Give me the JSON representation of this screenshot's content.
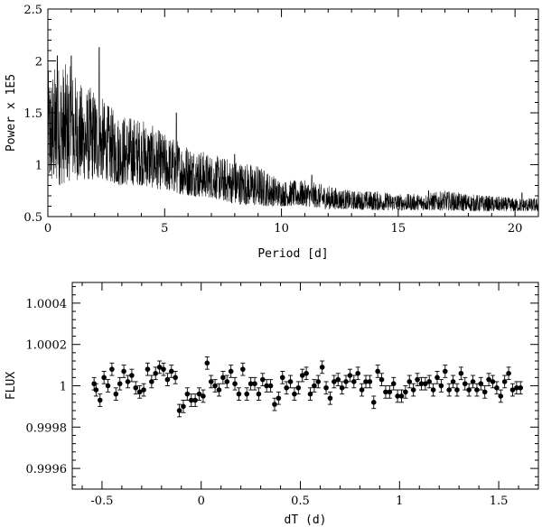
{
  "chart_data": [
    {
      "type": "line",
      "xlabel": "Period [d]",
      "ylabel": "Power x 1E5",
      "xlim": [
        0,
        21
      ],
      "ylim": [
        0.5,
        2.5
      ],
      "xticks": [
        0,
        5,
        10,
        15,
        20
      ],
      "yticks": [
        0.5,
        1,
        1.5,
        2,
        2.5
      ],
      "xtick_labels": [
        "0",
        "5",
        "10",
        "15",
        "20"
      ],
      "ytick_labels": [
        "0.5",
        "1",
        "1.5",
        "2",
        "2.5"
      ],
      "envelope": {
        "x": [
          0,
          0.5,
          1,
          1.5,
          2,
          2.5,
          3,
          4,
          5,
          6,
          7,
          8,
          9,
          10,
          11,
          12,
          13,
          14,
          15,
          16,
          17,
          18,
          19,
          20,
          21
        ],
        "low": [
          0.8,
          0.8,
          0.85,
          0.85,
          0.85,
          0.85,
          0.8,
          0.8,
          0.75,
          0.7,
          0.68,
          0.62,
          0.6,
          0.6,
          0.6,
          0.57,
          0.57,
          0.56,
          0.56,
          0.56,
          0.56,
          0.55,
          0.55,
          0.55,
          0.55
        ],
        "high": [
          1.9,
          2.0,
          1.95,
          1.75,
          1.75,
          1.6,
          1.5,
          1.45,
          1.3,
          1.2,
          1.1,
          1.05,
          1.0,
          0.85,
          0.85,
          0.8,
          0.75,
          0.75,
          0.72,
          0.72,
          0.75,
          0.72,
          0.7,
          0.68,
          0.68
        ]
      },
      "peaks": [
        {
          "x": 0.4,
          "y": 2.05
        },
        {
          "x": 1.0,
          "y": 2.05
        },
        {
          "x": 2.2,
          "y": 2.13
        },
        {
          "x": 5.5,
          "y": 1.5
        },
        {
          "x": 8.0,
          "y": 1.1
        },
        {
          "x": 11.3,
          "y": 0.9
        },
        {
          "x": 16.3,
          "y": 0.75
        },
        {
          "x": 20.3,
          "y": 0.73
        }
      ]
    },
    {
      "type": "scatter",
      "xlabel": "dT (d)",
      "ylabel": "FLUX",
      "xlim": [
        -0.65,
        1.7
      ],
      "ylim": [
        0.9995,
        1.0005
      ],
      "xticks": [
        -0.5,
        0,
        0.5,
        1,
        1.5
      ],
      "yticks": [
        0.9996,
        0.9998,
        1,
        1.0002,
        1.0004
      ],
      "xtick_labels": [
        "-0.5",
        "0",
        "0.5",
        "1",
        "1.5"
      ],
      "ytick_labels": [
        "0.9996",
        "0.9998",
        "1",
        "1.0002",
        "1.0004"
      ],
      "error": 3e-05,
      "points": [
        [
          -0.54,
          1.00001
        ],
        [
          -0.53,
          0.99998
        ],
        [
          -0.51,
          0.99993
        ],
        [
          -0.49,
          1.00004
        ],
        [
          -0.47,
          1.0
        ],
        [
          -0.45,
          1.00008
        ],
        [
          -0.43,
          0.99996
        ],
        [
          -0.41,
          1.00001
        ],
        [
          -0.39,
          1.00007
        ],
        [
          -0.37,
          1.00002
        ],
        [
          -0.35,
          1.00005
        ],
        [
          -0.33,
          0.99999
        ],
        [
          -0.31,
          0.99997
        ],
        [
          -0.29,
          0.99998
        ],
        [
          -0.27,
          1.00008
        ],
        [
          -0.25,
          1.00002
        ],
        [
          -0.23,
          1.00006
        ],
        [
          -0.21,
          1.00009
        ],
        [
          -0.19,
          1.00008
        ],
        [
          -0.17,
          1.00003
        ],
        [
          -0.15,
          1.00007
        ],
        [
          -0.13,
          1.00004
        ],
        [
          -0.11,
          0.99988
        ],
        [
          -0.09,
          0.9999
        ],
        [
          -0.07,
          0.99996
        ],
        [
          -0.05,
          0.99993
        ],
        [
          -0.03,
          0.99993
        ],
        [
          -0.01,
          0.99996
        ],
        [
          0.01,
          0.99995
        ],
        [
          0.03,
          1.00011
        ],
        [
          0.05,
          1.00002
        ],
        [
          0.07,
          1.0
        ],
        [
          0.09,
          0.99998
        ],
        [
          0.11,
          1.00004
        ],
        [
          0.13,
          1.00002
        ],
        [
          0.15,
          1.00007
        ],
        [
          0.17,
          1.00001
        ],
        [
          0.19,
          0.99996
        ],
        [
          0.21,
          1.00008
        ],
        [
          0.23,
          0.99996
        ],
        [
          0.25,
          1.00001
        ],
        [
          0.27,
          1.00001
        ],
        [
          0.29,
          0.99996
        ],
        [
          0.31,
          1.00003
        ],
        [
          0.33,
          1.0
        ],
        [
          0.35,
          1.0
        ],
        [
          0.37,
          0.99991
        ],
        [
          0.39,
          0.99994
        ],
        [
          0.41,
          1.00004
        ],
        [
          0.43,
          0.99999
        ],
        [
          0.45,
          1.00002
        ],
        [
          0.47,
          0.99996
        ],
        [
          0.49,
          0.99999
        ],
        [
          0.51,
          1.00005
        ],
        [
          0.53,
          1.00006
        ],
        [
          0.55,
          0.99996
        ],
        [
          0.57,
          1.0
        ],
        [
          0.59,
          1.00002
        ],
        [
          0.61,
          1.00009
        ],
        [
          0.63,
          0.99999
        ],
        [
          0.65,
          0.99994
        ],
        [
          0.67,
          1.00002
        ],
        [
          0.69,
          1.00003
        ],
        [
          0.71,
          0.99999
        ],
        [
          0.73,
          1.00002
        ],
        [
          0.75,
          1.00005
        ],
        [
          0.77,
          1.00002
        ],
        [
          0.79,
          1.00006
        ],
        [
          0.81,
          0.99998
        ],
        [
          0.83,
          1.00002
        ],
        [
          0.85,
          1.00002
        ],
        [
          0.87,
          0.99992
        ],
        [
          0.89,
          1.00007
        ],
        [
          0.91,
          1.00003
        ],
        [
          0.93,
          0.99997
        ],
        [
          0.95,
          0.99997
        ],
        [
          0.97,
          1.00001
        ],
        [
          0.99,
          0.99995
        ],
        [
          1.01,
          0.99995
        ],
        [
          1.03,
          0.99997
        ],
        [
          1.05,
          1.00002
        ],
        [
          1.07,
          0.99998
        ],
        [
          1.09,
          1.00003
        ],
        [
          1.11,
          1.00001
        ],
        [
          1.13,
          1.00001
        ],
        [
          1.15,
          1.00002
        ],
        [
          1.17,
          0.99998
        ],
        [
          1.19,
          1.00004
        ],
        [
          1.21,
          1.0
        ],
        [
          1.23,
          1.00007
        ],
        [
          1.25,
          0.99998
        ],
        [
          1.27,
          1.00002
        ],
        [
          1.29,
          0.99998
        ],
        [
          1.31,
          1.00006
        ],
        [
          1.33,
          1.00001
        ],
        [
          1.35,
          0.99998
        ],
        [
          1.37,
          1.00002
        ],
        [
          1.39,
          0.99998
        ],
        [
          1.41,
          1.00001
        ],
        [
          1.43,
          0.99997
        ],
        [
          1.45,
          1.00003
        ],
        [
          1.47,
          1.00002
        ],
        [
          1.49,
          0.99999
        ],
        [
          1.51,
          0.99995
        ],
        [
          1.53,
          1.00002
        ],
        [
          1.55,
          1.00006
        ],
        [
          1.57,
          0.99998
        ],
        [
          1.59,
          0.99999
        ],
        [
          1.61,
          0.99999
        ]
      ]
    }
  ]
}
